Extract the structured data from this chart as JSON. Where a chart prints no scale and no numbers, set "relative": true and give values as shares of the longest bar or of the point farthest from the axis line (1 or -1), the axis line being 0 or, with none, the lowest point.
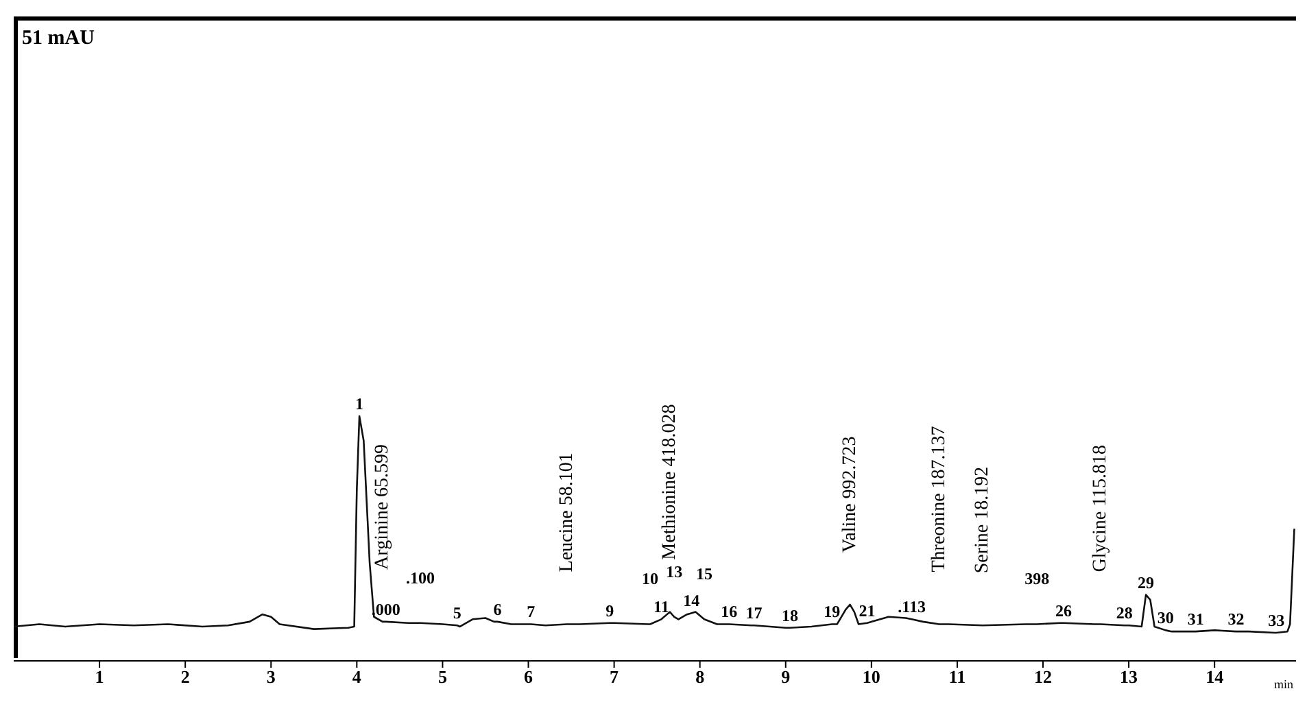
{
  "chart_data": {
    "type": "line",
    "relative": true,
    "xlabel": "min",
    "xlim": [
      0,
      14.95
    ],
    "xticks": [
      1,
      2,
      3,
      4,
      5,
      6,
      7,
      8,
      9,
      10,
      11,
      12,
      13,
      14
    ],
    "grid": false,
    "legend": false,
    "marker": "none",
    "line_style": "solid",
    "series": [
      {
        "color": "#111111",
        "x": [
          0,
          0.3,
          0.6,
          1,
          1.4,
          1.8,
          2.2,
          2.5,
          2.75,
          2.9,
          3.0,
          3.1,
          3.5,
          3.9,
          3.97,
          4.0,
          4.03,
          4.08,
          4.15,
          4.2,
          4.3,
          4.34,
          4.6,
          4.74,
          5.0,
          5.17,
          5.2,
          5.35,
          5.5,
          5.6,
          5.64,
          5.8,
          6.03,
          6.2,
          6.45,
          6.6,
          6.95,
          7.0,
          7.4,
          7.42,
          7.55,
          7.65,
          7.7,
          7.75,
          7.85,
          7.9,
          7.95,
          8.05,
          8.2,
          8.34,
          8.6,
          8.63,
          9.0,
          9.05,
          9.3,
          9.54,
          9.6,
          9.7,
          9.75,
          9.8,
          9.85,
          9.95,
          10.2,
          10.4,
          10.47,
          10.6,
          10.79,
          10.9,
          11.3,
          11.8,
          11.93,
          12.2,
          12.24,
          12.6,
          12.67,
          12.95,
          13.0,
          13.15,
          13.2,
          13.25,
          13.3,
          13.43,
          13.5,
          13.78,
          14.0,
          14.25,
          14.4,
          14.7,
          14.72,
          14.85,
          14.88,
          14.93
        ],
        "values": [
          0.14,
          0.15,
          0.14,
          0.15,
          0.145,
          0.15,
          0.14,
          0.145,
          0.16,
          0.19,
          0.18,
          0.15,
          0.13,
          0.135,
          0.14,
          0.7,
          1.0,
          0.9,
          0.4,
          0.18,
          0.16,
          0.16,
          0.155,
          0.155,
          0.15,
          0.145,
          0.14,
          0.17,
          0.175,
          0.16,
          0.16,
          0.15,
          0.15,
          0.145,
          0.15,
          0.15,
          0.155,
          0.155,
          0.15,
          0.15,
          0.17,
          0.2,
          0.18,
          0.17,
          0.19,
          0.195,
          0.2,
          0.17,
          0.15,
          0.15,
          0.145,
          0.145,
          0.135,
          0.135,
          0.14,
          0.15,
          0.15,
          0.21,
          0.23,
          0.2,
          0.15,
          0.155,
          0.18,
          0.175,
          0.17,
          0.16,
          0.15,
          0.15,
          0.145,
          0.15,
          0.15,
          0.155,
          0.155,
          0.15,
          0.15,
          0.145,
          0.145,
          0.14,
          0.27,
          0.25,
          0.14,
          0.125,
          0.12,
          0.12,
          0.125,
          0.12,
          0.12,
          0.115,
          0.115,
          0.12,
          0.15,
          0.54
        ]
      }
    ],
    "annotations": [
      "51 mAU",
      {
        "text": "1",
        "x": 4.03,
        "y": 1.0
      },
      {
        "text": "Arginine 65.599",
        "x": 4.3,
        "y": 0.16
      },
      {
        "text": "Leucine 58.101",
        "x": 6.45,
        "y": 0.15
      },
      {
        "text": "Methionine 418.028",
        "x": 7.65,
        "y": 0.2
      },
      {
        "text": "11",
        "x": 7.55,
        "y": 0.17
      },
      {
        "text": "14",
        "x": 7.9,
        "y": 0.195
      },
      {
        "text": "13",
        "x": 7.7,
        "y": 0.18
      },
      {
        "text": "15",
        "x": 8.05,
        "y": 0.17
      },
      {
        "text": "16",
        "x": 8.34,
        "y": 0.15
      },
      {
        "text": "17",
        "x": 8.63,
        "y": 0.145
      },
      {
        "text": "Valine 992.723",
        "x": 9.75,
        "y": 0.23
      },
      {
        "text": "Threonine 187.137",
        "x": 10.79,
        "y": 0.15
      },
      {
        "text": "Serine 18.192",
        "x": 11.3,
        "y": 0.145
      },
      {
        "text": "26",
        "x": 12.24,
        "y": 0.155
      },
      {
        "text": "Glycine 115.818",
        "x": 12.67,
        "y": 0.15
      },
      {
        "text": "28",
        "x": 12.95,
        "y": 0.145
      },
      {
        "text": "29",
        "x": 13.2,
        "y": 0.27
      },
      {
        "text": "33",
        "x": 14.72,
        "y": 0.115
      },
      {
        "text": ".000",
        "x": 4.34,
        "y": 0.16
      },
      {
        "text": ".100",
        "x": 4.74,
        "y": 0.155
      },
      {
        "text": "5",
        "x": 5.17,
        "y": 0.145
      },
      {
        "text": "6",
        "x": 5.64,
        "y": 0.16
      },
      {
        "text": "7",
        "x": 6.03,
        "y": 0.15
      },
      {
        "text": "9",
        "x": 6.95,
        "y": 0.155
      },
      {
        "text": "10",
        "x": 7.42,
        "y": 0.15
      },
      {
        "text": "18",
        "x": 9.05,
        "y": 0.135
      },
      {
        "text": "19",
        "x": 9.54,
        "y": 0.15
      },
      {
        "text": "21",
        "x": 9.95,
        "y": 0.155
      },
      {
        "text": ".113",
        "x": 10.47,
        "y": 0.17
      },
      {
        "text": "398",
        "x": 11.93,
        "y": 0.15
      },
      {
        "text": "30",
        "x": 13.43,
        "y": 0.125
      },
      {
        "text": "31",
        "x": 13.78,
        "y": 0.12
      },
      {
        "text": "32",
        "x": 14.25,
        "y": 0.12
      }
    ]
  }
}
